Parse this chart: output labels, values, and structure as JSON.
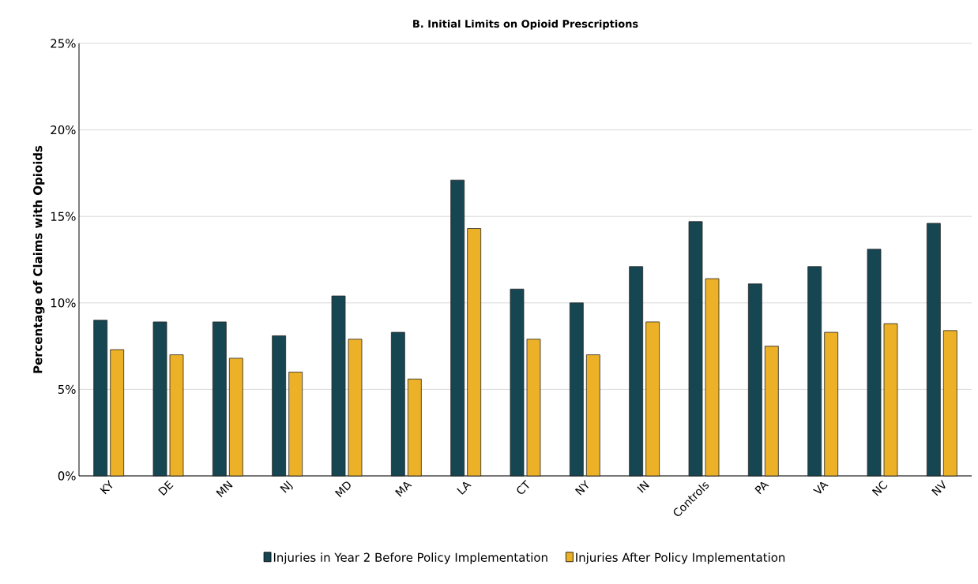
{
  "chart_data": {
    "type": "bar",
    "title": "**B. Initial Limits on Opioid Prescriptions**",
    "ylabel": "**Percentage of Claims with Opioids**",
    "categories": [
      "KY",
      "DE",
      "MN",
      "NJ",
      "MD",
      "MA",
      "LA",
      "CT",
      "NY",
      "IN",
      "Controls",
      "PA",
      "VA",
      "NC",
      "NV"
    ],
    "series": [
      {
        "name": "Injuries in Year 2 Before Policy Implementation",
        "color": "#164651",
        "values": [
          9.0,
          8.9,
          8.9,
          8.1,
          10.4,
          8.3,
          17.1,
          10.8,
          10.0,
          12.1,
          14.7,
          11.1,
          12.1,
          13.1,
          14.6
        ]
      },
      {
        "name": "Injuries After Policy Implementation",
        "color": "#ecb126",
        "values": [
          7.3,
          7.0,
          6.8,
          6.0,
          7.9,
          5.6,
          14.3,
          7.9,
          7.0,
          8.9,
          11.4,
          7.5,
          8.3,
          8.8,
          8.4
        ]
      }
    ],
    "ylim": [
      0,
      25
    ],
    "yticks": [
      {
        "value": 0,
        "label": "0%"
      },
      {
        "value": 5,
        "label": "5%"
      },
      {
        "value": 10,
        "label": "10%"
      },
      {
        "value": 15,
        "label": "15%"
      },
      {
        "value": 20,
        "label": "20%"
      },
      {
        "value": 25,
        "label": "25%"
      }
    ],
    "grid": "y",
    "legend": "bottom"
  }
}
